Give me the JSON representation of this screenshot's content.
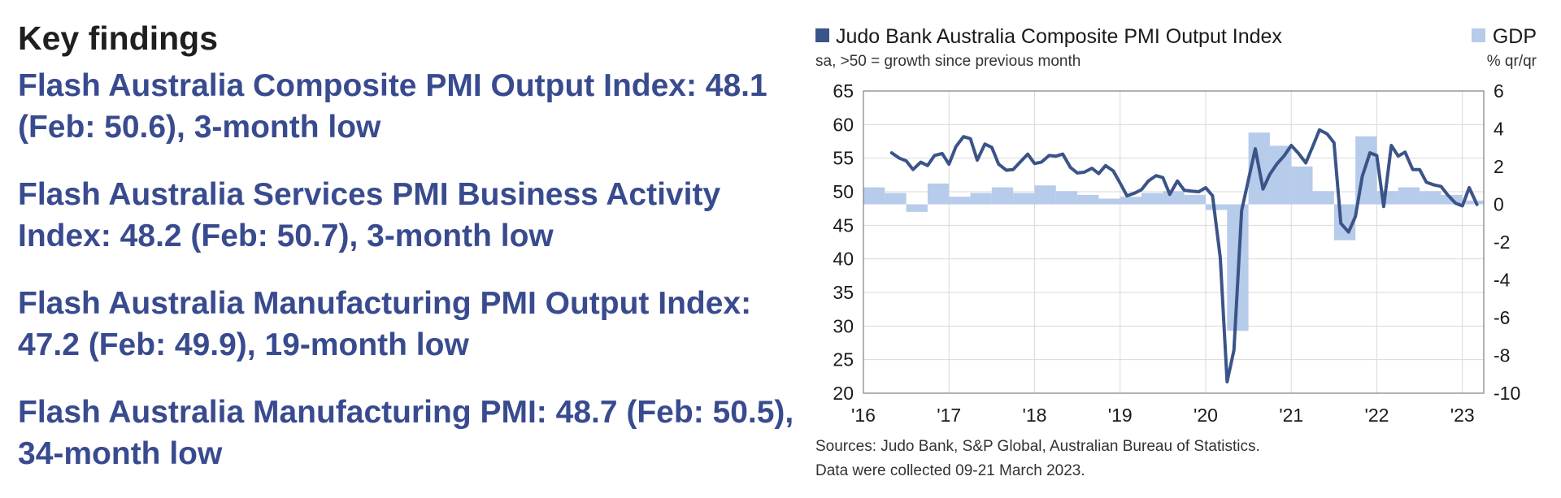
{
  "findings": {
    "heading": "Key findings",
    "items": [
      "Flash Australia Composite PMI Output Index: 48.1 (Feb: 50.6), 3-month low",
      "Flash Australia Services PMI Business Activity Index: 48.2 (Feb: 50.7), 3-month low",
      "Flash Australia Manufacturing PMI Output Index: 47.2 (Feb: 49.9), 19-month low",
      "Flash Australia Manufacturing PMI: 48.7 (Feb: 50.5), 34-month low"
    ]
  },
  "chart_data": {
    "type": "bar",
    "legend": {
      "pmi": "Judo Bank Australia Composite PMI Output Index",
      "gdp": "GDP"
    },
    "left_axis_note": "sa, >50 = growth since previous month",
    "right_axis_note": "% qr/qr",
    "x_ticks": [
      "'16",
      "'17",
      "'18",
      "'19",
      "'20",
      "'21",
      "'22",
      "'23"
    ],
    "y_left": {
      "min": 20,
      "max": 65,
      "ticks": [
        65,
        60,
        55,
        50,
        45,
        40,
        35,
        30,
        25,
        20
      ]
    },
    "y_right": {
      "min": -10,
      "max": 6,
      "ticks": [
        6,
        4,
        2,
        0,
        -2,
        -4,
        -6,
        -8,
        -10
      ]
    },
    "pmi_color": "#3b5488",
    "gdp_color": "#b7cbea",
    "grid": true,
    "series": [
      {
        "name": "Judo Bank Australia Composite PMI Output Index",
        "kind": "line",
        "x": [
          2016.33,
          2016.42,
          2016.5,
          2016.58,
          2016.67,
          2016.75,
          2016.83,
          2016.92,
          2017.0,
          2017.08,
          2017.17,
          2017.25,
          2017.33,
          2017.42,
          2017.5,
          2017.58,
          2017.67,
          2017.75,
          2017.83,
          2017.92,
          2018.0,
          2018.08,
          2018.17,
          2018.25,
          2018.33,
          2018.42,
          2018.5,
          2018.58,
          2018.67,
          2018.75,
          2018.83,
          2018.92,
          2019.0,
          2019.08,
          2019.17,
          2019.25,
          2019.33,
          2019.42,
          2019.5,
          2019.58,
          2019.67,
          2019.75,
          2019.83,
          2019.92,
          2020.0,
          2020.08,
          2020.17,
          2020.25,
          2020.33,
          2020.42,
          2020.5,
          2020.58,
          2020.67,
          2020.75,
          2020.83,
          2020.92,
          2021.0,
          2021.08,
          2021.17,
          2021.25,
          2021.33,
          2021.42,
          2021.5,
          2021.58,
          2021.67,
          2021.75,
          2021.83,
          2021.92,
          2022.0,
          2022.08,
          2022.17,
          2022.25,
          2022.33,
          2022.42,
          2022.5,
          2022.58,
          2022.67,
          2022.75,
          2022.83,
          2022.92,
          2023.0,
          2023.08,
          2023.17
        ],
        "values": [
          55.8,
          55,
          54.6,
          53.3,
          54.4,
          53.9,
          55.4,
          55.7,
          54.1,
          56.7,
          58.2,
          57.9,
          54.7,
          57.1,
          56.6,
          54.1,
          53.2,
          53.3,
          54.4,
          55.6,
          54.2,
          54.4,
          55.4,
          55.3,
          55.6,
          53.6,
          52.8,
          52.9,
          53.5,
          52.7,
          53.9,
          53.1,
          51.3,
          49.4,
          49.8,
          50.3,
          51.6,
          52.4,
          52.1,
          49.6,
          51.6,
          50.2,
          50.1,
          50.0,
          50.6,
          49.4,
          40.2,
          21.7,
          26.4,
          47.2,
          51.8,
          56.4,
          50.4,
          52.6,
          54.1,
          55.4,
          56.9,
          55.8,
          54.3,
          56.7,
          59.2,
          58.6,
          57.3,
          45.3,
          44.0,
          46.3,
          52.3,
          55.8,
          55.4,
          47.8,
          56.9,
          55.3,
          55.9,
          53.3,
          53.3,
          51.4,
          51.0,
          50.8,
          49.5,
          48.3,
          47.9,
          50.6,
          48.1
        ]
      },
      {
        "name": "GDP",
        "kind": "bar",
        "x": [
          2016.0,
          2016.25,
          2016.5,
          2016.75,
          2017.0,
          2017.25,
          2017.5,
          2017.75,
          2018.0,
          2018.25,
          2018.5,
          2018.75,
          2019.0,
          2019.25,
          2019.5,
          2019.75,
          2020.0,
          2020.25,
          2020.5,
          2020.75,
          2021.0,
          2021.25,
          2021.5,
          2021.75,
          2022.0,
          2022.25,
          2022.5,
          2022.75,
          2023.0
        ],
        "values": [
          0.9,
          0.6,
          -0.4,
          1.1,
          0.4,
          0.6,
          0.9,
          0.6,
          1.0,
          0.7,
          0.5,
          0.3,
          0.4,
          0.6,
          0.7,
          0.5,
          -0.3,
          -6.7,
          3.8,
          3.1,
          2.0,
          0.7,
          -1.9,
          3.6,
          0.7,
          0.9,
          0.7,
          0.5,
          0.2
        ]
      }
    ],
    "sources": "Sources: Judo Bank, S&P Global, Australian Bureau of Statistics.",
    "collected": "Data were collected 09-21 March 2023."
  }
}
